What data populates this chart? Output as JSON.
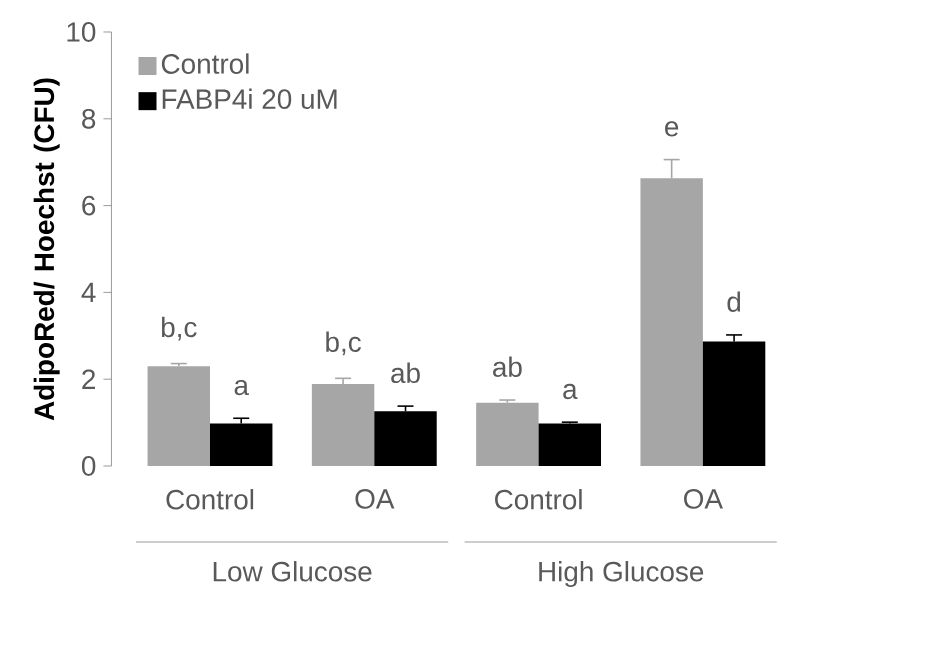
{
  "chart_data": {
    "type": "bar",
    "ylabel": "AdipoRed/ Hoechst (CFU)",
    "categories": [
      "Control",
      "OA",
      "Control",
      "OA"
    ],
    "annotations": [
      "Low Glucose",
      "High Glucose"
    ],
    "series": [
      {
        "name": "Control",
        "color": "#a6a6a6",
        "values": [
          2.3,
          1.89,
          1.46,
          6.63
        ],
        "errors": [
          0.06,
          0.13,
          0.06,
          0.43
        ],
        "value_labels": [
          "b,c",
          "b,c",
          "ab",
          "e"
        ]
      },
      {
        "name": "FABP4i 20 uM",
        "color": "#000000",
        "values": [
          0.98,
          1.26,
          0.98,
          2.87
        ],
        "errors": [
          0.12,
          0.12,
          0.03,
          0.15
        ],
        "value_labels": [
          "a",
          "ab",
          "a",
          "d"
        ]
      }
    ],
    "ylim": [
      0,
      10
    ],
    "yticks": [
      0,
      2,
      4,
      6,
      8,
      10
    ],
    "legend": "top left",
    "grid": false
  }
}
